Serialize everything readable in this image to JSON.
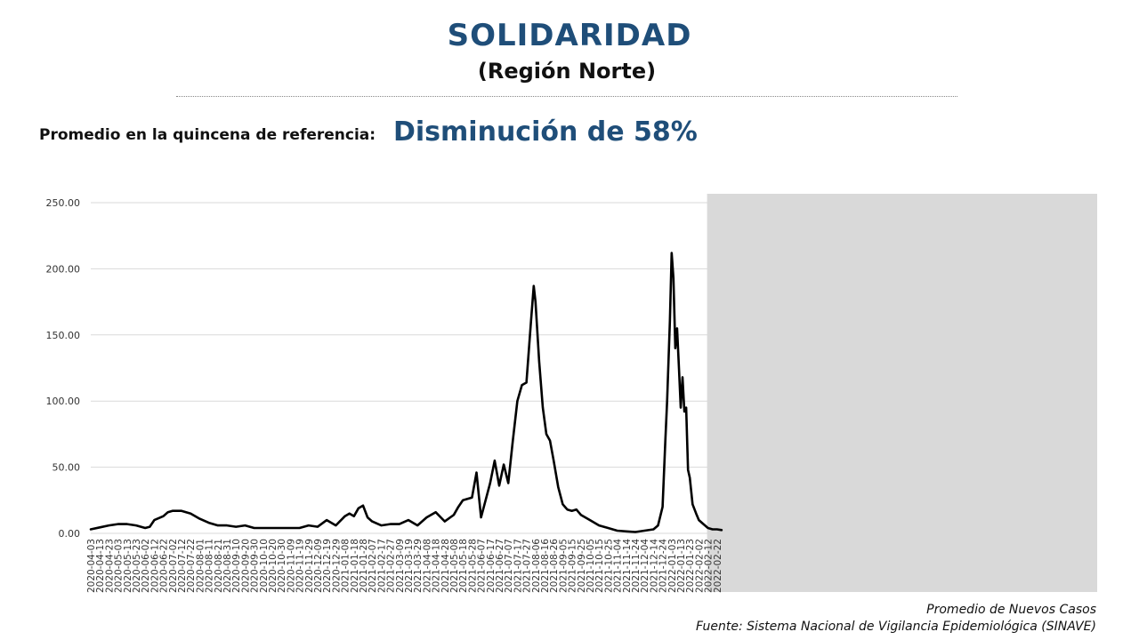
{
  "header": {
    "title": "SOLIDARIDAD",
    "subtitle": "(Región Norte)",
    "reference_label": "Promedio en la quincena de referencia:",
    "reference_value": "Disminución de 58%"
  },
  "footer": {
    "series_note": "Promedio de Nuevos Casos",
    "source": "Fuente: Sistema Nacional de Vigilancia Epidemiológica (SINAVE)"
  },
  "colors": {
    "title": "#1f4e79",
    "line": "#000000",
    "grid": "#d9d9d9",
    "shade": "#d9d9d9"
  },
  "chart_data": {
    "type": "line",
    "title": "",
    "xlabel": "",
    "ylabel": "",
    "ylim": [
      0,
      250
    ],
    "yticks": [
      "0.00",
      "50.00",
      "100.00",
      "150.00",
      "200.00",
      "250.00"
    ],
    "grid": true,
    "legend": "none",
    "x_tick_labels": [
      "2020-04-03",
      "2020-04-13",
      "2020-04-23",
      "2020-05-03",
      "2020-05-13",
      "2020-05-23",
      "2020-06-02",
      "2020-06-12",
      "2020-06-22",
      "2020-07-02",
      "2020-07-12",
      "2020-07-22",
      "2020-08-01",
      "2020-08-11",
      "2020-08-21",
      "2020-08-31",
      "2020-09-10",
      "2020-09-20",
      "2020-09-30",
      "2020-10-10",
      "2020-10-20",
      "2020-10-30",
      "2020-11-09",
      "2020-11-19",
      "2020-11-29",
      "2020-12-09",
      "2020-12-19",
      "2020-12-29",
      "2021-01-08",
      "2021-01-18",
      "2021-01-28",
      "2021-02-07",
      "2021-02-17",
      "2021-02-27",
      "2021-03-09",
      "2021-03-19",
      "2021-03-29",
      "2021-04-08",
      "2021-04-18",
      "2021-04-28",
      "2021-05-08",
      "2021-05-18",
      "2021-05-28",
      "2021-06-07",
      "2021-06-17",
      "2021-06-27",
      "2021-07-07",
      "2021-07-17",
      "2021-07-27",
      "2021-08-06",
      "2021-08-16",
      "2021-08-26",
      "2021-09-05",
      "2021-09-15",
      "2021-09-25",
      "2021-10-05",
      "2021-10-15",
      "2021-10-25",
      "2021-11-04",
      "2021-11-14",
      "2021-11-24",
      "2021-12-04",
      "2021-12-14",
      "2021-12-24",
      "2022-01-03",
      "2022-01-13",
      "2022-01-23",
      "2022-02-02",
      "2022-02-12",
      "2022-02-22"
    ],
    "shaded_range": [
      "2022-02-12",
      "2022-03-01"
    ],
    "series": [
      {
        "points": [
          [
            "2020-04-03",
            3
          ],
          [
            "2020-04-13",
            4.5
          ],
          [
            "2020-04-23",
            6
          ],
          [
            "2020-05-03",
            7
          ],
          [
            "2020-05-13",
            7
          ],
          [
            "2020-05-23",
            6
          ],
          [
            "2020-06-02",
            4
          ],
          [
            "2020-06-07",
            5
          ],
          [
            "2020-06-12",
            10
          ],
          [
            "2020-06-22",
            13
          ],
          [
            "2020-06-27",
            16
          ],
          [
            "2020-07-02",
            17
          ],
          [
            "2020-07-12",
            17
          ],
          [
            "2020-07-22",
            15
          ],
          [
            "2020-08-01",
            11
          ],
          [
            "2020-08-11",
            8
          ],
          [
            "2020-08-21",
            6
          ],
          [
            "2020-08-31",
            6
          ],
          [
            "2020-09-10",
            5
          ],
          [
            "2020-09-20",
            6
          ],
          [
            "2020-09-30",
            4
          ],
          [
            "2020-10-10",
            4
          ],
          [
            "2020-10-20",
            4
          ],
          [
            "2020-10-30",
            4
          ],
          [
            "2020-11-09",
            4
          ],
          [
            "2020-11-19",
            4
          ],
          [
            "2020-11-29",
            6
          ],
          [
            "2020-12-09",
            5
          ],
          [
            "2020-12-19",
            10
          ],
          [
            "2020-12-29",
            6
          ],
          [
            "2021-01-08",
            13
          ],
          [
            "2021-01-13",
            15
          ],
          [
            "2021-01-18",
            13
          ],
          [
            "2021-01-23",
            19
          ],
          [
            "2021-01-28",
            21
          ],
          [
            "2021-02-02",
            12
          ],
          [
            "2021-02-07",
            9
          ],
          [
            "2021-02-17",
            6
          ],
          [
            "2021-02-27",
            7
          ],
          [
            "2021-03-09",
            7
          ],
          [
            "2021-03-19",
            10
          ],
          [
            "2021-03-29",
            6
          ],
          [
            "2021-04-08",
            12
          ],
          [
            "2021-04-18",
            16
          ],
          [
            "2021-04-28",
            9
          ],
          [
            "2021-05-08",
            14
          ],
          [
            "2021-05-13",
            20
          ],
          [
            "2021-05-18",
            25
          ],
          [
            "2021-05-23",
            26
          ],
          [
            "2021-05-28",
            27
          ],
          [
            "2021-06-02",
            46
          ],
          [
            "2021-06-07",
            12
          ],
          [
            "2021-06-12",
            25
          ],
          [
            "2021-06-17",
            38
          ],
          [
            "2021-06-22",
            55
          ],
          [
            "2021-06-27",
            36
          ],
          [
            "2021-07-02",
            52
          ],
          [
            "2021-07-07",
            38
          ],
          [
            "2021-07-12",
            70
          ],
          [
            "2021-07-17",
            100
          ],
          [
            "2021-07-22",
            112
          ],
          [
            "2021-07-27",
            114
          ],
          [
            "2021-08-01",
            160
          ],
          [
            "2021-08-04",
            187
          ],
          [
            "2021-08-06",
            175
          ],
          [
            "2021-08-10",
            130
          ],
          [
            "2021-08-14",
            95
          ],
          [
            "2021-08-18",
            75
          ],
          [
            "2021-08-22",
            70
          ],
          [
            "2021-08-26",
            55
          ],
          [
            "2021-08-31",
            35
          ],
          [
            "2021-09-05",
            22
          ],
          [
            "2021-09-10",
            18
          ],
          [
            "2021-09-15",
            17
          ],
          [
            "2021-09-20",
            18
          ],
          [
            "2021-09-25",
            14
          ],
          [
            "2021-10-05",
            10
          ],
          [
            "2021-10-15",
            6
          ],
          [
            "2021-10-25",
            4
          ],
          [
            "2021-11-04",
            2
          ],
          [
            "2021-11-14",
            1.5
          ],
          [
            "2021-11-24",
            1
          ],
          [
            "2021-12-04",
            2
          ],
          [
            "2021-12-14",
            3
          ],
          [
            "2021-12-19",
            6
          ],
          [
            "2021-12-24",
            20
          ],
          [
            "2021-12-27",
            70
          ],
          [
            "2021-12-29",
            100
          ],
          [
            "2022-01-01",
            160
          ],
          [
            "2022-01-03",
            212
          ],
          [
            "2022-01-05",
            193
          ],
          [
            "2022-01-07",
            140
          ],
          [
            "2022-01-09",
            155
          ],
          [
            "2022-01-11",
            125
          ],
          [
            "2022-01-13",
            95
          ],
          [
            "2022-01-15",
            118
          ],
          [
            "2022-01-17",
            92
          ],
          [
            "2022-01-19",
            95
          ],
          [
            "2022-01-21",
            48
          ],
          [
            "2022-01-23",
            42
          ],
          [
            "2022-01-26",
            22
          ],
          [
            "2022-01-30",
            15
          ],
          [
            "2022-02-02",
            10
          ],
          [
            "2022-02-07",
            7
          ],
          [
            "2022-02-12",
            4
          ],
          [
            "2022-02-17",
            3
          ],
          [
            "2022-02-22",
            3
          ],
          [
            "2022-02-27",
            2.5
          ]
        ]
      }
    ]
  }
}
